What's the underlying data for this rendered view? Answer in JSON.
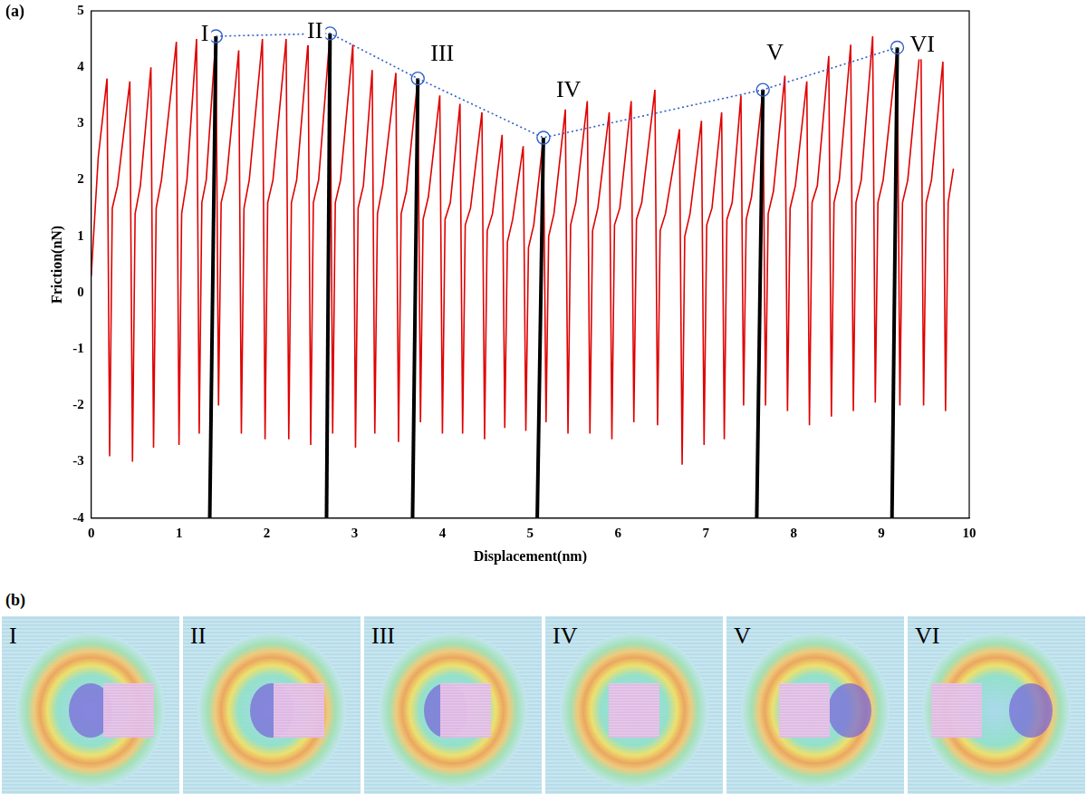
{
  "chart_data": {
    "type": "line",
    "panel_label": "(a)",
    "x_label": "Displacement(nm)",
    "y_label": "Friction(nN)",
    "xlim": [
      0,
      10
    ],
    "xticks": [
      0,
      1,
      2,
      3,
      4,
      5,
      6,
      7,
      8,
      9,
      10
    ],
    "ylim": [
      -4,
      5
    ],
    "yticks": [
      -4,
      -3,
      -2,
      -1,
      0,
      1,
      2,
      3,
      4,
      5
    ],
    "grid": false,
    "series": [
      {
        "color": "#e00000",
        "line_style": "solid",
        "x": [
          0,
          0.08,
          0.18,
          0.21,
          0.24,
          0.3,
          0.44,
          0.47,
          0.5,
          0.56,
          0.68,
          0.71,
          0.74,
          0.8,
          0.97,
          1.0,
          1.03,
          1.09,
          1.2,
          1.23,
          1.26,
          1.31,
          1.42,
          1.45,
          1.48,
          1.54,
          1.68,
          1.71,
          1.74,
          1.8,
          1.95,
          1.98,
          2.01,
          2.07,
          2.22,
          2.25,
          2.28,
          2.34,
          2.47,
          2.5,
          2.53,
          2.59,
          2.72,
          2.75,
          2.78,
          2.84,
          2.98,
          3.01,
          3.04,
          3.1,
          3.2,
          3.23,
          3.26,
          3.32,
          3.47,
          3.5,
          3.53,
          3.59,
          3.72,
          3.75,
          3.78,
          3.84,
          3.97,
          4.0,
          4.03,
          4.09,
          4.2,
          4.23,
          4.26,
          4.32,
          4.45,
          4.48,
          4.51,
          4.57,
          4.68,
          4.71,
          4.74,
          4.8,
          4.92,
          4.95,
          4.98,
          5.04,
          5.15,
          5.18,
          5.21,
          5.27,
          5.4,
          5.43,
          5.46,
          5.52,
          5.65,
          5.68,
          5.71,
          5.77,
          5.9,
          5.93,
          5.96,
          6.02,
          6.15,
          6.18,
          6.21,
          6.27,
          6.42,
          6.45,
          6.48,
          6.54,
          6.7,
          6.73,
          6.76,
          6.82,
          6.95,
          6.98,
          7.01,
          7.07,
          7.18,
          7.21,
          7.24,
          7.3,
          7.4,
          7.43,
          7.46,
          7.52,
          7.65,
          7.68,
          7.71,
          7.77,
          7.9,
          7.93,
          7.96,
          8.02,
          8.15,
          8.18,
          8.21,
          8.27,
          8.4,
          8.43,
          8.46,
          8.52,
          8.65,
          8.68,
          8.71,
          8.77,
          8.9,
          8.93,
          8.96,
          9.02,
          9.18,
          9.21,
          9.24,
          9.3,
          9.45,
          9.48,
          9.51,
          9.57,
          9.7,
          9.73,
          9.76,
          9.82
        ],
        "values": [
          0.3,
          2.4,
          3.8,
          -2.9,
          1.5,
          1.9,
          3.75,
          -3.0,
          1.4,
          1.9,
          4.0,
          -2.75,
          1.5,
          2.0,
          4.45,
          -2.7,
          1.4,
          2.0,
          4.5,
          -2.5,
          1.6,
          2.0,
          4.55,
          -2.0,
          1.6,
          2.0,
          4.3,
          -2.5,
          1.5,
          2.0,
          4.5,
          -2.6,
          1.6,
          2.0,
          4.5,
          -2.6,
          1.6,
          2.0,
          4.45,
          -2.7,
          1.6,
          2.0,
          4.6,
          -2.5,
          1.6,
          2.0,
          4.4,
          -2.75,
          1.5,
          1.9,
          3.95,
          -2.5,
          1.4,
          1.9,
          3.9,
          -2.65,
          1.4,
          1.8,
          3.8,
          -2.3,
          1.3,
          1.7,
          3.5,
          -2.5,
          1.3,
          1.6,
          3.35,
          -2.5,
          1.2,
          1.5,
          3.2,
          -2.6,
          1.1,
          1.4,
          2.8,
          -2.4,
          0.9,
          1.3,
          2.6,
          -2.45,
          0.8,
          1.2,
          2.75,
          -2.3,
          1.0,
          1.4,
          3.25,
          -2.5,
          1.2,
          1.6,
          3.4,
          -2.5,
          1.1,
          1.5,
          3.2,
          -2.6,
          1.2,
          1.5,
          3.4,
          -2.3,
          1.3,
          1.6,
          3.6,
          -2.35,
          1.1,
          1.4,
          2.9,
          -3.05,
          1.0,
          1.4,
          3.05,
          -2.7,
          1.2,
          1.5,
          3.2,
          -2.6,
          1.3,
          1.6,
          3.5,
          -2.0,
          1.3,
          1.7,
          3.6,
          -2.0,
          1.4,
          1.8,
          3.85,
          -2.1,
          1.5,
          1.9,
          3.75,
          -2.35,
          1.6,
          1.9,
          4.2,
          -2.2,
          1.6,
          2.0,
          4.4,
          -2.1,
          1.6,
          2.0,
          4.55,
          -1.95,
          1.6,
          2.0,
          4.35,
          -2.0,
          1.6,
          2.0,
          4.5,
          -2.0,
          1.6,
          2.0,
          4.1,
          -2.1,
          1.6,
          2.2
        ]
      }
    ],
    "peaks": {
      "color": "#2f5fc8",
      "line_style": "dotted",
      "marker": "circle",
      "points": [
        {
          "label": "I",
          "x": 1.42,
          "y": 4.55,
          "base_x": 1.35
        },
        {
          "label": "II",
          "x": 2.72,
          "y": 4.6,
          "base_x": 2.68
        },
        {
          "label": "III",
          "x": 3.72,
          "y": 3.8,
          "base_x": 3.66
        },
        {
          "label": "IV",
          "x": 5.15,
          "y": 2.75,
          "base_x": 5.08
        },
        {
          "label": "V",
          "x": 7.65,
          "y": 3.6,
          "base_x": 7.58
        },
        {
          "label": "VI",
          "x": 9.18,
          "y": 4.35,
          "base_x": 9.12
        }
      ]
    }
  },
  "panel_b": {
    "label": "(b)",
    "frames": [
      "I",
      "II",
      "III",
      "IV",
      "V",
      "VI"
    ]
  }
}
